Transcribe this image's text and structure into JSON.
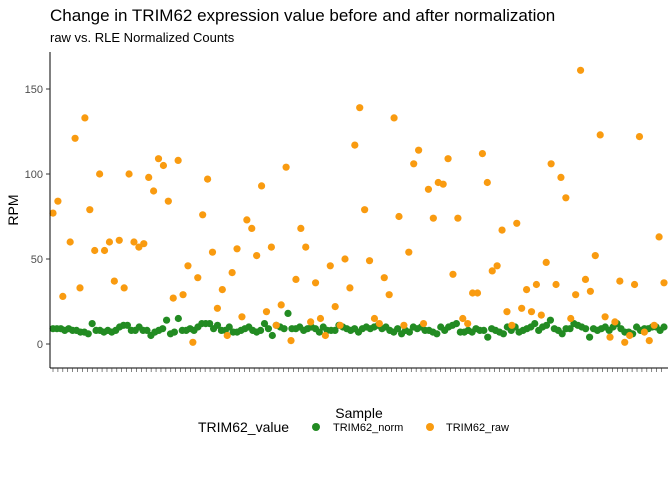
{
  "chart_data": {
    "type": "scatter",
    "title": "Change in TRIM62 expression value before and after normalization",
    "subtitle": "raw vs. RLE Normalized Counts",
    "xlabel": "Sample",
    "ylabel": "RPM",
    "ylim": [
      0,
      170
    ],
    "yticks": [
      0,
      50,
      100,
      150
    ],
    "grid": false,
    "legend_title": "TRIM62_value",
    "legend_position": "bottom",
    "series": [
      {
        "name": "TRIM62_norm",
        "color": "#228B22",
        "values": [
          9,
          9,
          9,
          8,
          9,
          8,
          8,
          7,
          7,
          6,
          12,
          8,
          8,
          7,
          8,
          7,
          8,
          10,
          11,
          11,
          8,
          8,
          10,
          8,
          8,
          5,
          7,
          8,
          9,
          14,
          6,
          7,
          15,
          8,
          8,
          9,
          8,
          10,
          12,
          12,
          12,
          9,
          11,
          8,
          8,
          10,
          7,
          7,
          8,
          9,
          10,
          8,
          7,
          8,
          12,
          9,
          5,
          11,
          10,
          9,
          18,
          9,
          9,
          10,
          8,
          9,
          10,
          9,
          7,
          10,
          8,
          8,
          8,
          11,
          10,
          9,
          8,
          9,
          7,
          9,
          10,
          9,
          10,
          11,
          9,
          10,
          8,
          7,
          9,
          6,
          8,
          7,
          10,
          9,
          10,
          8,
          8,
          7,
          6,
          10,
          8,
          10,
          11,
          12,
          7,
          7,
          8,
          7,
          9,
          8,
          8,
          4,
          9,
          8,
          7,
          6,
          10,
          8,
          10,
          7,
          8,
          9,
          10,
          12,
          8,
          10,
          11,
          14,
          9,
          8,
          6,
          9,
          9,
          12,
          11,
          10,
          9,
          4,
          9,
          8,
          9,
          10,
          8,
          10,
          12,
          9,
          7,
          7,
          6,
          10,
          8,
          9,
          9,
          10,
          10,
          8,
          10
        ]
      },
      {
        "name": "TRIM62_raw",
        "color": "#F99B10",
        "points": [
          [
            0,
            77
          ],
          [
            2,
            84
          ],
          [
            4,
            28
          ],
          [
            7,
            60
          ],
          [
            9,
            121
          ],
          [
            11,
            33
          ],
          [
            13,
            133
          ],
          [
            15,
            79
          ],
          [
            17,
            55
          ],
          [
            19,
            100
          ],
          [
            21,
            55
          ],
          [
            23,
            60
          ],
          [
            25,
            37
          ],
          [
            27,
            61
          ],
          [
            29,
            33
          ],
          [
            31,
            100
          ],
          [
            33,
            60
          ],
          [
            35,
            57
          ],
          [
            37,
            59
          ],
          [
            39,
            98
          ],
          [
            41,
            90
          ],
          [
            43,
            109
          ],
          [
            45,
            105
          ],
          [
            47,
            84
          ],
          [
            49,
            27
          ],
          [
            51,
            108
          ],
          [
            53,
            29
          ],
          [
            55,
            46
          ],
          [
            57,
            1
          ],
          [
            59,
            39
          ],
          [
            61,
            76
          ],
          [
            63,
            97
          ],
          [
            65,
            54
          ],
          [
            67,
            21
          ],
          [
            69,
            32
          ],
          [
            71,
            5
          ],
          [
            73,
            42
          ],
          [
            75,
            56
          ],
          [
            77,
            16
          ],
          [
            79,
            73
          ],
          [
            81,
            68
          ],
          [
            83,
            52
          ],
          [
            85,
            93
          ],
          [
            87,
            19
          ],
          [
            89,
            57
          ],
          [
            91,
            11
          ],
          [
            93,
            23
          ],
          [
            95,
            104
          ],
          [
            97,
            2
          ],
          [
            99,
            38
          ],
          [
            101,
            68
          ],
          [
            103,
            57
          ],
          [
            105,
            13
          ],
          [
            107,
            36
          ],
          [
            109,
            15
          ],
          [
            111,
            5
          ],
          [
            113,
            46
          ],
          [
            115,
            22
          ],
          [
            117,
            11
          ],
          [
            119,
            50
          ],
          [
            121,
            33
          ],
          [
            123,
            117
          ],
          [
            125,
            139
          ],
          [
            127,
            79
          ],
          [
            129,
            49
          ],
          [
            131,
            15
          ],
          [
            133,
            12
          ],
          [
            135,
            39
          ],
          [
            137,
            29
          ],
          [
            139,
            133
          ],
          [
            141,
            75
          ],
          [
            143,
            11
          ],
          [
            145,
            54
          ],
          [
            147,
            106
          ],
          [
            149,
            114
          ],
          [
            151,
            12
          ],
          [
            153,
            91
          ],
          [
            155,
            74
          ],
          [
            157,
            95
          ],
          [
            159,
            94
          ],
          [
            161,
            109
          ],
          [
            163,
            41
          ],
          [
            165,
            74
          ],
          [
            167,
            15
          ],
          [
            169,
            12
          ],
          [
            171,
            30
          ],
          [
            173,
            30
          ],
          [
            175,
            112
          ],
          [
            177,
            95
          ],
          [
            179,
            43
          ],
          [
            181,
            46
          ],
          [
            183,
            67
          ],
          [
            185,
            19
          ],
          [
            187,
            11
          ],
          [
            189,
            71
          ],
          [
            191,
            21
          ],
          [
            193,
            32
          ],
          [
            195,
            19
          ],
          [
            197,
            35
          ],
          [
            199,
            17
          ],
          [
            201,
            48
          ],
          [
            203,
            106
          ],
          [
            205,
            35
          ],
          [
            207,
            98
          ],
          [
            209,
            86
          ],
          [
            211,
            15
          ],
          [
            213,
            29
          ],
          [
            215,
            161
          ],
          [
            217,
            38
          ],
          [
            219,
            31
          ],
          [
            221,
            52
          ],
          [
            223,
            123
          ],
          [
            225,
            16
          ],
          [
            227,
            4
          ],
          [
            229,
            13
          ],
          [
            231,
            37
          ],
          [
            233,
            1
          ],
          [
            235,
            5
          ],
          [
            237,
            35
          ],
          [
            239,
            122
          ],
          [
            241,
            7
          ],
          [
            243,
            2
          ],
          [
            245,
            11
          ],
          [
            247,
            63
          ],
          [
            249,
            36
          ]
        ]
      }
    ]
  }
}
